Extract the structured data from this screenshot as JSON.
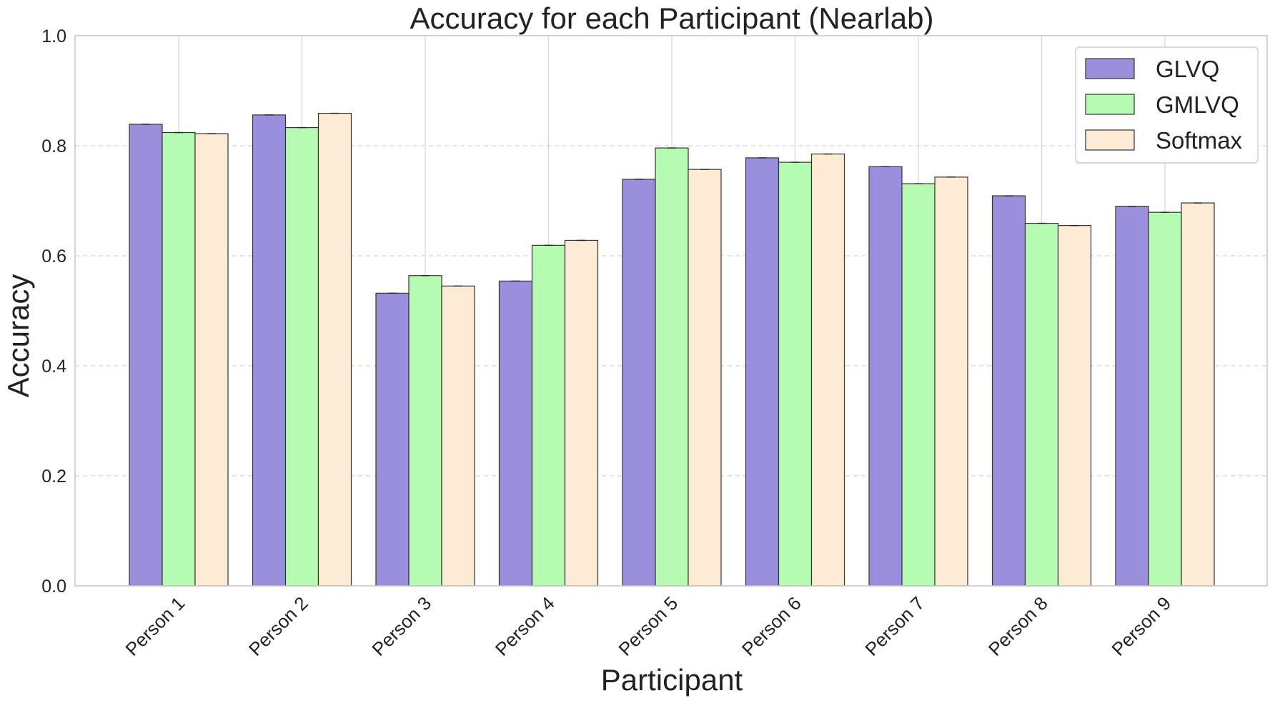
{
  "chart_data": {
    "type": "bar",
    "title": "Accuracy for each Participant (Nearlab)",
    "xlabel": "Participant",
    "ylabel": "Accuracy",
    "ylim": [
      0,
      1.0
    ],
    "yticks": [
      "0.0",
      "0.2",
      "0.4",
      "0.6",
      "0.8",
      "1.0"
    ],
    "categories": [
      "Person 1",
      "Person 2",
      "Person 3",
      "Person 4",
      "Person 5",
      "Person 6",
      "Person 7",
      "Person 8",
      "Person 9"
    ],
    "series": [
      {
        "name": "GLVQ",
        "color": "#9a8fdc",
        "values": [
          0.839,
          0.856,
          0.532,
          0.554,
          0.739,
          0.778,
          0.762,
          0.709,
          0.69
        ]
      },
      {
        "name": "GMLVQ",
        "color": "#b5fbb2",
        "values": [
          0.824,
          0.833,
          0.564,
          0.619,
          0.796,
          0.77,
          0.731,
          0.659,
          0.679
        ]
      },
      {
        "name": "Softmax",
        "color": "#fdebd5",
        "values": [
          0.822,
          0.859,
          0.545,
          0.628,
          0.757,
          0.785,
          0.743,
          0.655,
          0.696
        ]
      }
    ],
    "grid": true,
    "legend_position": "top-right"
  }
}
